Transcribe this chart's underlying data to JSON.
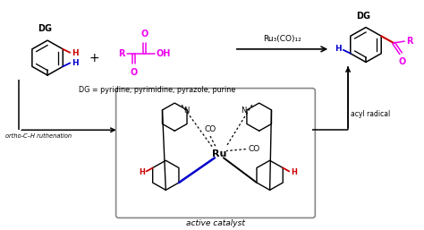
{
  "bg_color": "#ffffff",
  "black": "#000000",
  "magenta": "#ee00ee",
  "blue": "#0000cc",
  "red": "#cc0000",
  "dg_label": "DG",
  "plus_sign": "+",
  "reagent_label": "Ru₃(CO)₁₂",
  "dg_eq": "DG = pyridine, pyrimidine, pyrazole, purine",
  "ortho_label": "ortho-C–H ruthenation",
  "acyl_label": "acyl radical",
  "active_catalyst": "active catalyst",
  "r_label": "R",
  "co_label": "CO",
  "ru_label": "Ru",
  "n_label": "N",
  "oh_label": "OH",
  "o_label": "O",
  "h_label": "H"
}
